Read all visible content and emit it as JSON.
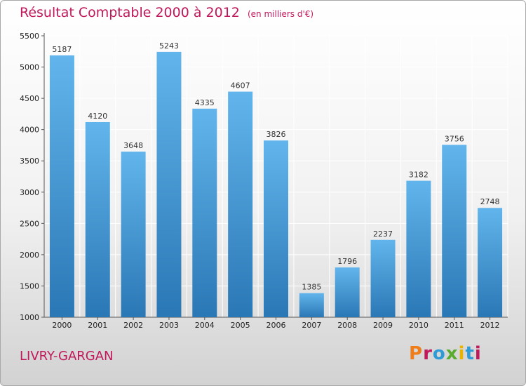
{
  "header": {
    "title": "Résultat Comptable 2000 à 2012",
    "subtitle": "(en milliers d'€)"
  },
  "footer": {
    "city": "LIVRY-GARGAN",
    "logo": "Proxiti"
  },
  "colors": {
    "title": "#c0185a",
    "bar_light": "#5fb2ea",
    "bar_dark": "#2a78b6",
    "logo": [
      "#ef7d1a",
      "#c2185b",
      "#2e9bd6",
      "#5aab2e",
      "#e8b400",
      "#2e9bd6",
      "#c2185b"
    ]
  },
  "chart_data": {
    "type": "bar",
    "title": "Résultat Comptable 2000 à 2012",
    "subtitle": "(en milliers d'€)",
    "categories": [
      "2000",
      "2001",
      "2002",
      "2003",
      "2004",
      "2005",
      "2006",
      "2007",
      "2008",
      "2009",
      "2010",
      "2011",
      "2012"
    ],
    "values": [
      5187,
      4120,
      3648,
      5243,
      4335,
      4607,
      3826,
      1385,
      1796,
      2237,
      3182,
      3756,
      2748
    ],
    "ylim": [
      1000,
      5500
    ],
    "yticks": [
      1000,
      1500,
      2000,
      2500,
      3000,
      3500,
      4000,
      4500,
      5000,
      5500
    ],
    "grid": true,
    "legend": "none",
    "data_labels": true
  }
}
